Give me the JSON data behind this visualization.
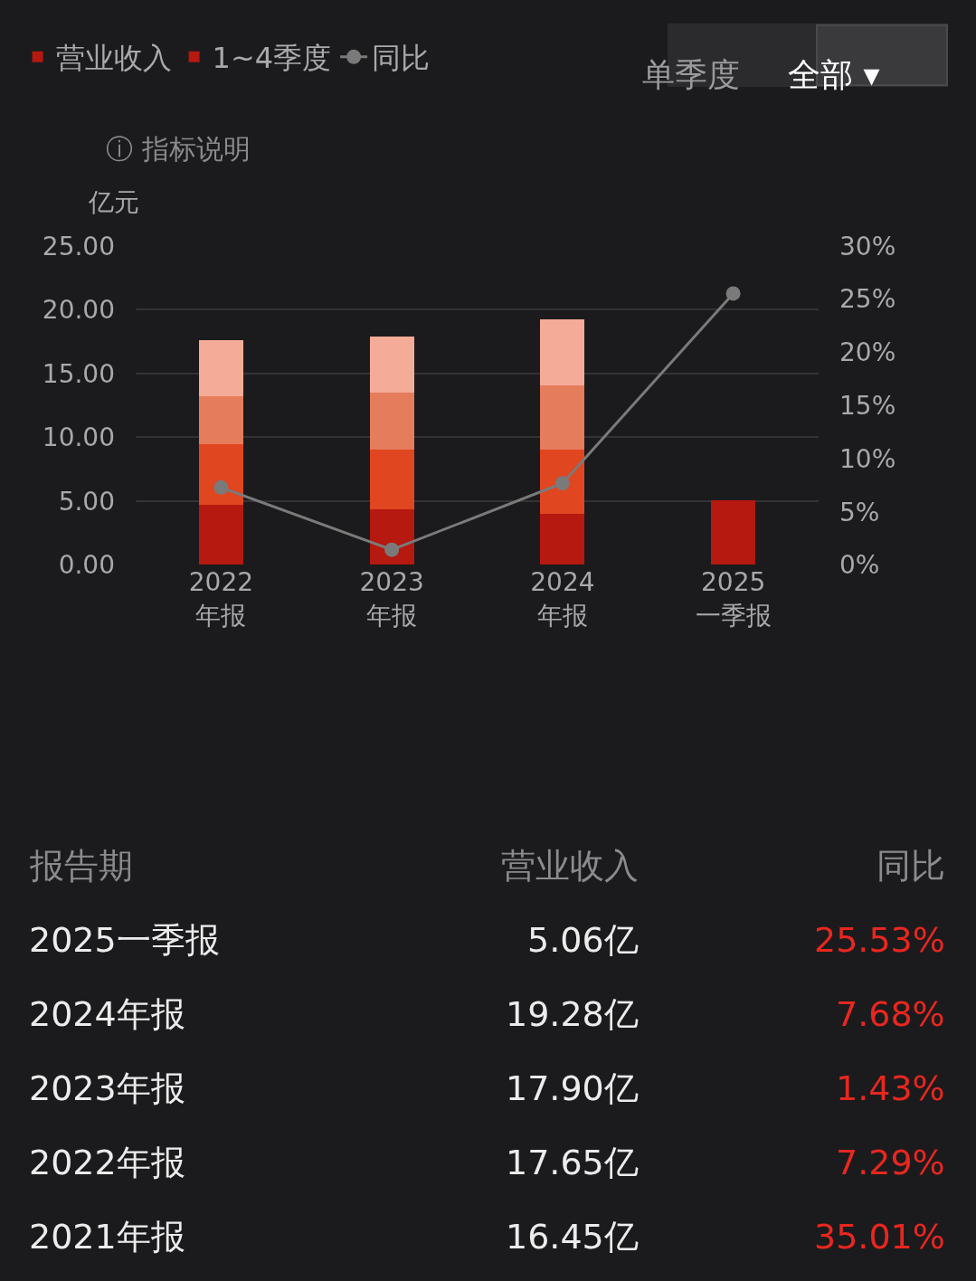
{
  "chart_data": {
    "type": "bar",
    "stacked": true,
    "ylabel": "亿元",
    "categories": [
      "2022\n年报",
      "2023\n年报",
      "2024\n年报",
      "2025\n一季报"
    ],
    "series": [
      {
        "name": "营业收入",
        "color": "#b5190f",
        "values": [
          null,
          null,
          null,
          5.06
        ]
      },
      {
        "name": "1~4季度",
        "color": "#b5190f",
        "values": [
          4.71,
          4.37,
          4.04,
          null
        ]
      },
      {
        "color": "#e0461f",
        "values": [
          4.74,
          4.68,
          5.01,
          null
        ]
      },
      {
        "color": "#e57c5c",
        "values": [
          3.74,
          4.48,
          5.05,
          null
        ]
      },
      {
        "color": "#f4ab97",
        "values": [
          4.46,
          4.37,
          5.18,
          null
        ]
      },
      {
        "name": "同比",
        "type": "line",
        "axis": "y2",
        "color": "#7a7a7a",
        "marker": "circle",
        "values": [
          7.29,
          1.43,
          7.68,
          25.53
        ]
      }
    ],
    "ylim": [
      0,
      25
    ],
    "yticks": [
      {
        "value": 0,
        "label": "0.00"
      },
      {
        "value": 5,
        "label": "5.00"
      },
      {
        "value": 10,
        "label": "10.00"
      },
      {
        "value": 15,
        "label": "15.00"
      },
      {
        "value": 20,
        "label": "20.00"
      },
      {
        "value": 25,
        "label": "25.00"
      }
    ],
    "y2lim": [
      0,
      30
    ],
    "y2ticks": [
      {
        "value": 0,
        "label": "0%"
      },
      {
        "value": 5,
        "label": "5%"
      },
      {
        "value": 10,
        "label": "10%"
      },
      {
        "value": 15,
        "label": "15%"
      },
      {
        "value": 20,
        "label": "20%"
      },
      {
        "value": 25,
        "label": "25%"
      },
      {
        "value": 30,
        "label": "30%"
      }
    ],
    "grid": "y",
    "legend": "top left",
    "annotations": [
      "单季度",
      "全部 ▾",
      "ⓘ 指标说明",
      "报告期",
      "营业收入",
      "同比",
      "2025一季报",
      "5.06亿",
      "25.53%",
      "2024年报",
      "19.28亿",
      "7.68%",
      "2023年报",
      "17.90亿",
      "1.43%",
      "2022年报",
      "17.65亿",
      "7.29%",
      "2021年报",
      "16.45亿",
      "35.01%"
    ]
  }
}
